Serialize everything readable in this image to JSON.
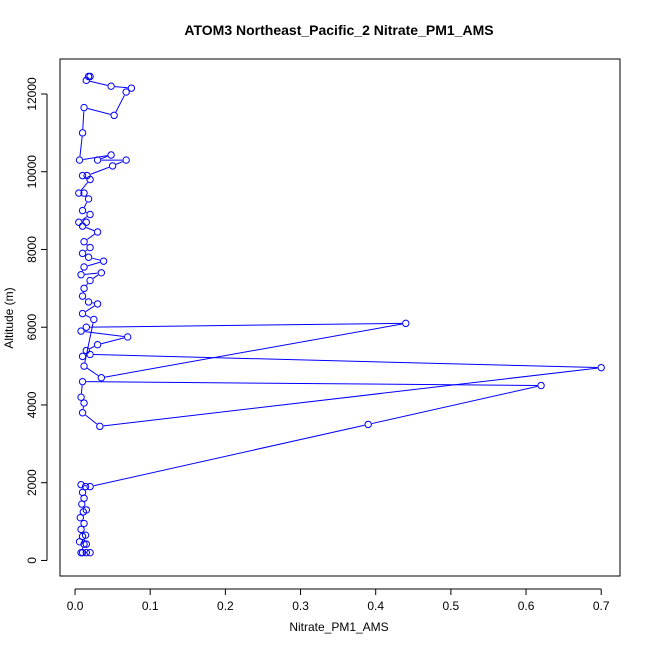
{
  "chart_data": {
    "type": "line",
    "title": "ATOM3 Northeast_Pacific_2 Nitrate_PM1_AMS",
    "xlabel": "Nitrate_PM1_AMS",
    "ylabel": "Altitude (m)",
    "xlim": [
      -0.02,
      0.725
    ],
    "ylim": [
      -400,
      12900
    ],
    "xticks": [
      0.0,
      0.1,
      0.2,
      0.3,
      0.4,
      0.5,
      0.6,
      0.7
    ],
    "xtick_labels": [
      "0.0",
      "0.1",
      "0.2",
      "0.3",
      "0.4",
      "0.5",
      "0.6",
      "0.7"
    ],
    "yticks": [
      0,
      2000,
      4000,
      6000,
      8000,
      10000,
      12000
    ],
    "ytick_labels": [
      "0",
      "2000",
      "4000",
      "6000",
      "8000",
      "10000",
      "12000"
    ],
    "grid": false,
    "legend": "none",
    "colors": {
      "series": "#0000ff"
    },
    "series": [
      {
        "marker": "open-circle",
        "points": [
          [
            0.01,
            200
          ],
          [
            0.015,
            200
          ],
          [
            0.02,
            200
          ],
          [
            0.008,
            200
          ],
          [
            0.012,
            420
          ],
          [
            0.006,
            480
          ],
          [
            0.015,
            420
          ],
          [
            0.01,
            620
          ],
          [
            0.014,
            650
          ],
          [
            0.008,
            800
          ],
          [
            0.012,
            950
          ],
          [
            0.007,
            1100
          ],
          [
            0.011,
            1250
          ],
          [
            0.015,
            1300
          ],
          [
            0.009,
            1450
          ],
          [
            0.012,
            1600
          ],
          [
            0.01,
            1750
          ],
          [
            0.014,
            1900
          ],
          [
            0.008,
            1950
          ],
          [
            0.02,
            1900
          ],
          [
            0.39,
            3500
          ],
          [
            0.62,
            4500
          ],
          [
            0.01,
            4600
          ],
          [
            0.008,
            4200
          ],
          [
            0.012,
            4050
          ],
          [
            0.01,
            3800
          ],
          [
            0.033,
            3450
          ],
          [
            0.7,
            4960
          ],
          [
            0.02,
            5300
          ],
          [
            0.01,
            5250
          ],
          [
            0.015,
            5400
          ],
          [
            0.03,
            5550
          ],
          [
            0.07,
            5750
          ],
          [
            0.008,
            5900
          ],
          [
            0.015,
            6000
          ],
          [
            0.44,
            6100
          ],
          [
            0.035,
            4700
          ],
          [
            0.012,
            5000
          ],
          [
            0.025,
            6200
          ],
          [
            0.01,
            6350
          ],
          [
            0.03,
            6600
          ],
          [
            0.018,
            6650
          ],
          [
            0.01,
            6800
          ],
          [
            0.012,
            7000
          ],
          [
            0.02,
            7200
          ],
          [
            0.035,
            7400
          ],
          [
            0.008,
            7350
          ],
          [
            0.012,
            7550
          ],
          [
            0.038,
            7700
          ],
          [
            0.018,
            7800
          ],
          [
            0.01,
            7900
          ],
          [
            0.02,
            8050
          ],
          [
            0.012,
            8200
          ],
          [
            0.03,
            8450
          ],
          [
            0.01,
            8600
          ],
          [
            0.015,
            8700
          ],
          [
            0.005,
            8700
          ],
          [
            0.02,
            8900
          ],
          [
            0.01,
            9000
          ],
          [
            0.018,
            9300
          ],
          [
            0.012,
            9450
          ],
          [
            0.005,
            9450
          ],
          [
            0.02,
            9800
          ],
          [
            0.01,
            9900
          ],
          [
            0.016,
            9900
          ],
          [
            0.05,
            10150
          ],
          [
            0.068,
            10300
          ],
          [
            0.03,
            10300
          ],
          [
            0.048,
            10430
          ],
          [
            0.006,
            10300
          ],
          [
            0.01,
            11000
          ],
          [
            0.012,
            11650
          ],
          [
            0.052,
            11450
          ],
          [
            0.068,
            12050
          ],
          [
            0.075,
            12150
          ],
          [
            0.048,
            12200
          ],
          [
            0.015,
            12350
          ],
          [
            0.02,
            12450
          ],
          [
            0.018,
            12450
          ]
        ]
      }
    ]
  }
}
